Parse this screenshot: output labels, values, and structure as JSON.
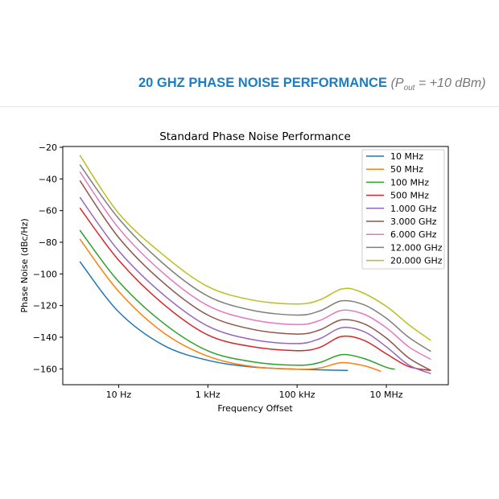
{
  "header": {
    "title": "20 GHZ PHASE NOISE PERFORMANCE",
    "condition_prefix": "(P",
    "condition_sub": "out",
    "condition_suffix": " = +10 dBm)"
  },
  "chart_data": {
    "type": "line",
    "title": "Standard Phase Noise Performance",
    "xlabel": "Frequency Offset",
    "ylabel": "Phase Noise (dBc/Hz)",
    "xscale": "log",
    "xlim": [
      0.56,
      245000000
    ],
    "ylim": [
      -170,
      -19.5
    ],
    "xticks": [
      {
        "value": 10,
        "label": "10 Hz"
      },
      {
        "value": 1000,
        "label": "1 kHz"
      },
      {
        "value": 100000,
        "label": "100 kHz"
      },
      {
        "value": 10000000,
        "label": "10 MHz"
      }
    ],
    "yticks": [
      {
        "value": -20,
        "label": "−20"
      },
      {
        "value": -40,
        "label": "−40"
      },
      {
        "value": -60,
        "label": "−60"
      },
      {
        "value": -80,
        "label": "−80"
      },
      {
        "value": -100,
        "label": "−100"
      },
      {
        "value": -120,
        "label": "−120"
      },
      {
        "value": -140,
        "label": "−140"
      },
      {
        "value": -160,
        "label": "−160"
      }
    ],
    "grid": false,
    "legend_position": "top-right",
    "series": [
      {
        "name": "10 MHz",
        "color": "#1f77b4",
        "points": [
          [
            1.35,
            -92.2
          ],
          [
            10,
            -124
          ],
          [
            100,
            -145
          ],
          [
            1000,
            -154.6
          ],
          [
            10000,
            -158.8
          ],
          [
            100000,
            -160.2
          ],
          [
            316000,
            -160.6
          ],
          [
            1380000,
            -161
          ]
        ]
      },
      {
        "name": "50 MHz",
        "color": "#ff7f0e",
        "points": [
          [
            1.35,
            -77.9
          ],
          [
            10,
            -111
          ],
          [
            100,
            -137
          ],
          [
            1000,
            -152
          ],
          [
            10000,
            -158.5
          ],
          [
            100000,
            -160.2
          ],
          [
            316000,
            -159.5
          ],
          [
            1000000,
            -156
          ],
          [
            3160000,
            -158
          ],
          [
            7600000,
            -161.6
          ]
        ]
      },
      {
        "name": "100 MHz",
        "color": "#2ca02c",
        "points": [
          [
            1.35,
            -72.4
          ],
          [
            10,
            -104.8
          ],
          [
            100,
            -131
          ],
          [
            1000,
            -148.6
          ],
          [
            10000,
            -155.5
          ],
          [
            100000,
            -157.7
          ],
          [
            316000,
            -156
          ],
          [
            1000000,
            -151
          ],
          [
            3160000,
            -153.5
          ],
          [
            10000000,
            -159
          ],
          [
            15500000,
            -160.2
          ]
        ]
      },
      {
        "name": "500 MHz",
        "color": "#d62728",
        "points": [
          [
            1.35,
            -58.3
          ],
          [
            10,
            -91.3
          ],
          [
            100,
            -119
          ],
          [
            1000,
            -138.6
          ],
          [
            10000,
            -146
          ],
          [
            100000,
            -148.5
          ],
          [
            316000,
            -146.5
          ],
          [
            1000000,
            -139.5
          ],
          [
            3160000,
            -142
          ],
          [
            10000000,
            -150.5
          ],
          [
            31600000,
            -158.5
          ],
          [
            100000000,
            -161
          ]
        ]
      },
      {
        "name": "1.000 GHz",
        "color": "#9467bd",
        "points": [
          [
            1.35,
            -51.6
          ],
          [
            10,
            -85.4
          ],
          [
            100,
            -113
          ],
          [
            1000,
            -133
          ],
          [
            10000,
            -141.5
          ],
          [
            100000,
            -144
          ],
          [
            316000,
            -141
          ],
          [
            1000000,
            -134
          ],
          [
            3160000,
            -136.5
          ],
          [
            10000000,
            -146
          ],
          [
            31600000,
            -157.5
          ],
          [
            100000000,
            -163
          ]
        ]
      },
      {
        "name": "3.000 GHz",
        "color": "#8c564b",
        "points": [
          [
            1.35,
            -41
          ],
          [
            10,
            -77
          ],
          [
            100,
            -105.5
          ],
          [
            1000,
            -126
          ],
          [
            10000,
            -135
          ],
          [
            100000,
            -138
          ],
          [
            316000,
            -135.5
          ],
          [
            1000000,
            -129
          ],
          [
            3160000,
            -131.5
          ],
          [
            10000000,
            -140.5
          ],
          [
            31600000,
            -153
          ],
          [
            100000000,
            -161
          ]
        ]
      },
      {
        "name": "6.000 GHz",
        "color": "#e377c2",
        "points": [
          [
            1.35,
            -35.5
          ],
          [
            10,
            -71
          ],
          [
            100,
            -99.5
          ],
          [
            1000,
            -120
          ],
          [
            10000,
            -129
          ],
          [
            100000,
            -132
          ],
          [
            316000,
            -129.5
          ],
          [
            1000000,
            -123
          ],
          [
            3160000,
            -125.5
          ],
          [
            10000000,
            -134
          ],
          [
            31600000,
            -146
          ],
          [
            100000000,
            -154
          ]
        ]
      },
      {
        "name": "12.000 GHz",
        "color": "#7f7f7f",
        "points": [
          [
            1.35,
            -31
          ],
          [
            10,
            -65
          ],
          [
            100,
            -93.5
          ],
          [
            1000,
            -114
          ],
          [
            10000,
            -123
          ],
          [
            100000,
            -126
          ],
          [
            316000,
            -123.5
          ],
          [
            1000000,
            -117
          ],
          [
            3160000,
            -119.5
          ],
          [
            10000000,
            -128
          ],
          [
            31600000,
            -140
          ],
          [
            100000000,
            -149
          ]
        ]
      },
      {
        "name": "20.000 GHz",
        "color": "#bcbd22",
        "points": [
          [
            1.35,
            -25
          ],
          [
            10,
            -61.7
          ],
          [
            100,
            -88
          ],
          [
            1000,
            -108
          ],
          [
            10000,
            -116.5
          ],
          [
            100000,
            -119
          ],
          [
            316000,
            -116.5
          ],
          [
            1000000,
            -109.5
          ],
          [
            2500000,
            -111
          ],
          [
            10000000,
            -120.5
          ],
          [
            31600000,
            -132
          ],
          [
            100000000,
            -142
          ]
        ]
      }
    ]
  }
}
